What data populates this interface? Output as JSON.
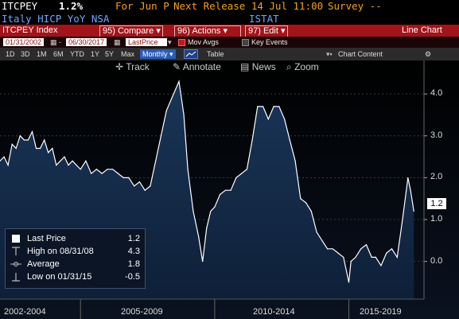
{
  "header": {
    "ticker": "ITCPEY",
    "value": "1.2%",
    "period": "For Jun P",
    "next_release": "Next Release 14 Jul 11:00",
    "survey": "Survey --",
    "description": "Italy HICP YoY NSA",
    "source": "ISTAT"
  },
  "toolbar": {
    "security": "ITCPEY Index",
    "compare": "95) Compare",
    "actions": "96) Actions",
    "edit": "97) Edit",
    "chart_type": "Line Chart"
  },
  "range": {
    "start": "01/31/2002",
    "end": "06/30/2017",
    "field": "LastPrice",
    "mov_avgs": "Mov Avgs",
    "key_events": "Key Events"
  },
  "periods": [
    "1D",
    "3D",
    "1M",
    "6M",
    "YTD",
    "1Y",
    "5Y",
    "Max"
  ],
  "frequency": "Monthly",
  "table_label": "Table",
  "chart_content_label": "Chart Content",
  "chart_tools": {
    "track": "Track",
    "annotate": "Annotate",
    "news": "News",
    "zoom": "Zoom"
  },
  "legend": [
    {
      "label": "Last Price",
      "value": "1.2"
    },
    {
      "label": "High on 08/31/08",
      "value": "4.3"
    },
    {
      "label": "Average",
      "value": "1.8"
    },
    {
      "label": "Low on 01/31/15",
      "value": "-0.5"
    }
  ],
  "last_value": "1.2",
  "colors": {
    "accent_red": "#a3141a",
    "amber": "#f4a11b",
    "blue_text": "#6ea7ff",
    "area_fill": "#1a3558",
    "line": "#ffffff"
  },
  "chart_data": {
    "type": "area",
    "ylim": [
      -0.9,
      4.8
    ],
    "yticks": [
      "4.0",
      "3.0",
      "2.0",
      "1.0",
      "0.0"
    ],
    "ytick_values": [
      4,
      3,
      2,
      1,
      0
    ],
    "x_groups": [
      "2002-2004",
      "2005-2009",
      "2010-2014",
      "2015-2019"
    ],
    "x_group_bounds": [
      2002.0,
      2005.0,
      2010.0,
      2015.0,
      2020.0
    ],
    "x_range": [
      2002.0,
      2017.8
    ],
    "series": [
      {
        "x": [
          2002.0,
          2002.15,
          2002.3,
          2002.45,
          2002.6,
          2002.75,
          2002.9,
          2003.05,
          2003.2,
          2003.35,
          2003.5,
          2003.65,
          2003.8,
          2003.95,
          2004.1,
          2004.25,
          2004.4,
          2004.55,
          2004.7,
          2004.85,
          2005.0,
          2005.2,
          2005.4,
          2005.6,
          2005.8,
          2006.0,
          2006.2,
          2006.4,
          2006.6,
          2006.8,
          2007.0,
          2007.2,
          2007.4,
          2007.6,
          2007.8,
          2008.0,
          2008.2,
          2008.4,
          2008.67,
          2008.85,
          2009.0,
          2009.2,
          2009.4,
          2009.55,
          2009.7,
          2009.85,
          2010.0,
          2010.2,
          2010.4,
          2010.6,
          2010.8,
          2011.0,
          2011.2,
          2011.4,
          2011.6,
          2011.8,
          2012.0,
          2012.2,
          2012.4,
          2012.6,
          2012.8,
          2013.0,
          2013.2,
          2013.4,
          2013.6,
          2013.8,
          2014.0,
          2014.2,
          2014.4,
          2014.6,
          2014.8,
          2015.0,
          2015.08,
          2015.25,
          2015.45,
          2015.65,
          2015.85,
          2016.0,
          2016.2,
          2016.4,
          2016.6,
          2016.8,
          2017.0,
          2017.2,
          2017.3,
          2017.42
        ],
        "y": [
          2.4,
          2.5,
          2.3,
          2.8,
          2.7,
          3.0,
          2.9,
          2.9,
          3.1,
          2.7,
          2.7,
          2.9,
          2.6,
          2.7,
          2.3,
          2.4,
          2.5,
          2.3,
          2.4,
          2.3,
          2.2,
          2.4,
          2.1,
          2.2,
          2.1,
          2.2,
          2.2,
          2.1,
          2.0,
          2.0,
          1.8,
          1.9,
          1.7,
          1.8,
          2.4,
          3.0,
          3.6,
          3.9,
          4.3,
          3.5,
          2.2,
          1.2,
          0.6,
          0.0,
          0.8,
          1.2,
          1.3,
          1.6,
          1.7,
          1.7,
          2.0,
          2.1,
          2.2,
          2.9,
          3.7,
          3.7,
          3.4,
          3.7,
          3.7,
          3.4,
          2.9,
          2.4,
          1.5,
          1.4,
          1.2,
          0.7,
          0.5,
          0.3,
          0.3,
          0.2,
          0.1,
          -0.5,
          0.0,
          0.1,
          0.3,
          0.4,
          0.1,
          0.1,
          -0.1,
          0.2,
          0.3,
          0.1,
          1.0,
          2.0,
          1.7,
          1.2
        ]
      }
    ]
  }
}
